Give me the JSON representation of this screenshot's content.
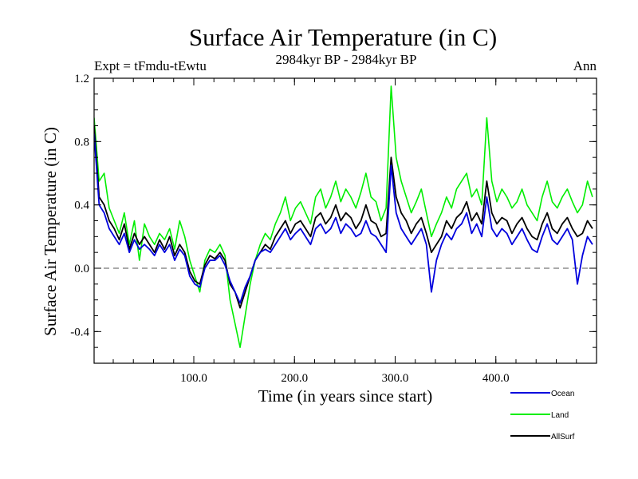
{
  "chart_data": {
    "type": "line",
    "title": "Surface Air Temperature (in C)",
    "subtitle_left": "Expt = tFmdu-tEwtu",
    "subtitle_center": "2984kyr BP - 2984kyr BP",
    "subtitle_right": "Ann",
    "xlabel": "Time (in years since start)",
    "ylabel": "Surface Air Temperature (in C)",
    "xlim": [
      1,
      500
    ],
    "ylim": [
      -0.6,
      1.2
    ],
    "xticks": [
      100,
      200,
      300,
      400
    ],
    "xtick_labels": [
      "100.0",
      "200.0",
      "300.0",
      "400.0"
    ],
    "yticks": [
      -0.4,
      0.0,
      0.4,
      0.8,
      1.2
    ],
    "ytick_labels": [
      "-0.4",
      "0.0",
      "0.4",
      "0.8",
      "1.2"
    ],
    "reference_line": 0.0,
    "legend_position": "bottom-right",
    "x_step": 5,
    "series": [
      {
        "name": "Land",
        "color": "#00ee00",
        "values": [
          0.95,
          0.55,
          0.6,
          0.38,
          0.3,
          0.22,
          0.35,
          0.15,
          0.3,
          0.05,
          0.28,
          0.2,
          0.15,
          0.22,
          0.18,
          0.25,
          0.12,
          0.3,
          0.2,
          0.05,
          -0.05,
          -0.15,
          0.05,
          0.12,
          0.1,
          0.15,
          0.08,
          -0.2,
          -0.35,
          -0.5,
          -0.3,
          -0.1,
          0.05,
          0.15,
          0.22,
          0.18,
          0.28,
          0.35,
          0.45,
          0.3,
          0.38,
          0.42,
          0.35,
          0.28,
          0.45,
          0.5,
          0.38,
          0.45,
          0.55,
          0.42,
          0.5,
          0.45,
          0.38,
          0.48,
          0.6,
          0.45,
          0.42,
          0.3,
          0.38,
          1.15,
          0.7,
          0.55,
          0.45,
          0.35,
          0.42,
          0.5,
          0.35,
          0.2,
          0.28,
          0.35,
          0.45,
          0.38,
          0.5,
          0.55,
          0.6,
          0.45,
          0.5,
          0.4,
          0.95,
          0.55,
          0.42,
          0.5,
          0.45,
          0.38,
          0.42,
          0.5,
          0.4,
          0.35,
          0.3,
          0.45,
          0.55,
          0.42,
          0.38,
          0.45,
          0.5,
          0.42,
          0.35,
          0.4,
          0.55,
          0.45
        ],
        "data_name": "series-land-line"
      },
      {
        "name": "AllSurf",
        "color": "#000000",
        "values": [
          0.9,
          0.45,
          0.4,
          0.3,
          0.25,
          0.18,
          0.28,
          0.12,
          0.22,
          0.15,
          0.2,
          0.15,
          0.1,
          0.18,
          0.12,
          0.2,
          0.08,
          0.15,
          0.1,
          -0.02,
          -0.08,
          -0.1,
          0.02,
          0.08,
          0.06,
          0.1,
          0.05,
          -0.1,
          -0.15,
          -0.25,
          -0.15,
          -0.05,
          0.05,
          0.1,
          0.15,
          0.12,
          0.2,
          0.25,
          0.3,
          0.22,
          0.28,
          0.3,
          0.25,
          0.2,
          0.32,
          0.35,
          0.28,
          0.32,
          0.4,
          0.3,
          0.35,
          0.32,
          0.25,
          0.3,
          0.4,
          0.3,
          0.28,
          0.2,
          0.22,
          0.7,
          0.45,
          0.35,
          0.3,
          0.22,
          0.28,
          0.32,
          0.22,
          0.1,
          0.15,
          0.2,
          0.3,
          0.25,
          0.32,
          0.35,
          0.42,
          0.3,
          0.35,
          0.28,
          0.55,
          0.35,
          0.28,
          0.32,
          0.3,
          0.22,
          0.28,
          0.32,
          0.25,
          0.2,
          0.18,
          0.28,
          0.35,
          0.25,
          0.22,
          0.28,
          0.32,
          0.25,
          0.2,
          0.22,
          0.3,
          0.25
        ],
        "data_name": "series-allsurf-line"
      },
      {
        "name": "Ocean",
        "color": "#0000dd",
        "values": [
          0.85,
          0.4,
          0.35,
          0.25,
          0.2,
          0.15,
          0.22,
          0.1,
          0.18,
          0.12,
          0.15,
          0.12,
          0.08,
          0.15,
          0.1,
          0.15,
          0.05,
          0.12,
          0.08,
          -0.05,
          -0.1,
          -0.12,
          0.0,
          0.05,
          0.05,
          0.08,
          0.02,
          -0.08,
          -0.15,
          -0.22,
          -0.12,
          -0.05,
          0.05,
          0.1,
          0.12,
          0.1,
          0.15,
          0.2,
          0.25,
          0.18,
          0.22,
          0.25,
          0.2,
          0.15,
          0.25,
          0.28,
          0.22,
          0.25,
          0.32,
          0.22,
          0.28,
          0.25,
          0.2,
          0.22,
          0.3,
          0.22,
          0.2,
          0.15,
          0.1,
          0.65,
          0.35,
          0.25,
          0.2,
          0.15,
          0.2,
          0.25,
          0.15,
          -0.15,
          0.05,
          0.15,
          0.22,
          0.18,
          0.25,
          0.28,
          0.35,
          0.22,
          0.28,
          0.2,
          0.45,
          0.25,
          0.2,
          0.25,
          0.22,
          0.15,
          0.2,
          0.25,
          0.18,
          0.12,
          0.1,
          0.2,
          0.28,
          0.18,
          0.15,
          0.2,
          0.25,
          0.18,
          -0.1,
          0.08,
          0.2,
          0.15
        ],
        "data_name": "series-ocean-line"
      }
    ],
    "legend": [
      {
        "name": "Ocean",
        "color": "#0000dd"
      },
      {
        "name": "Land",
        "color": "#00ee00"
      },
      {
        "name": "AllSurf",
        "color": "#000000"
      }
    ]
  }
}
